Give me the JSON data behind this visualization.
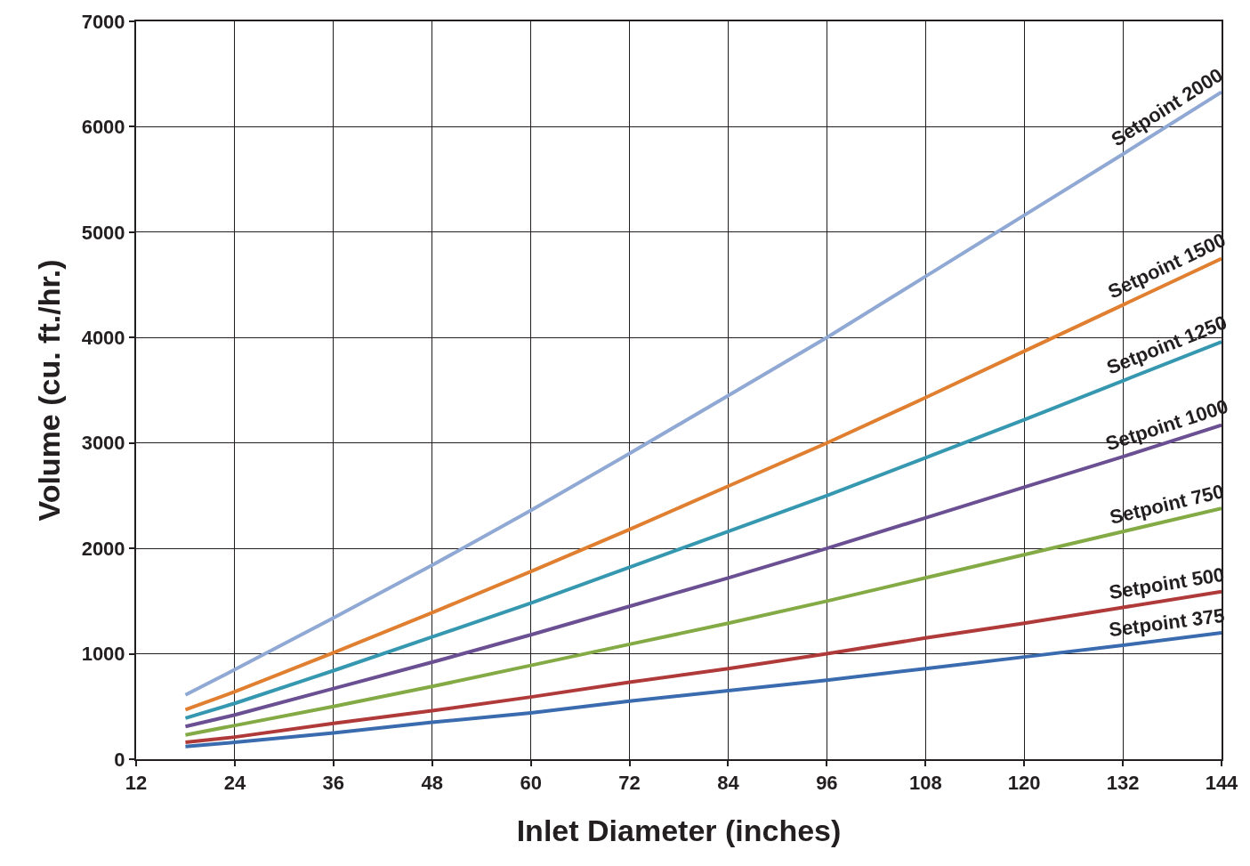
{
  "chart_data": {
    "type": "line",
    "xlabel": "Inlet Diameter (inches)",
    "ylabel": "Volume (cu. ft./hr.)",
    "x": [
      18,
      24,
      36,
      48,
      60,
      72,
      84,
      96,
      108,
      120,
      132,
      144
    ],
    "series": [
      {
        "name": "Setpoint 2000",
        "color": "#8fa8d4",
        "values": [
          610,
          850,
          1340,
          1840,
          2360,
          2900,
          3450,
          4000,
          4580,
          5160,
          5740,
          6330
        ]
      },
      {
        "name": "Setpoint 1500",
        "color": "#e07f30",
        "values": [
          470,
          640,
          1010,
          1390,
          1780,
          2180,
          2590,
          3000,
          3430,
          3870,
          4310,
          4750
        ]
      },
      {
        "name": "Setpoint 1250",
        "color": "#3598b0",
        "values": [
          390,
          530,
          840,
          1160,
          1480,
          1820,
          2160,
          2500,
          2860,
          3220,
          3590,
          3960
        ]
      },
      {
        "name": "Setpoint 1000",
        "color": "#6b4f93",
        "values": [
          310,
          420,
          670,
          920,
          1180,
          1450,
          1720,
          2000,
          2290,
          2580,
          2870,
          3170
        ]
      },
      {
        "name": "Setpoint 750",
        "color": "#83aa44",
        "values": [
          230,
          320,
          500,
          690,
          890,
          1090,
          1290,
          1500,
          1720,
          1940,
          2160,
          2380
        ]
      },
      {
        "name": "Setpoint 500",
        "color": "#b03a3a",
        "values": [
          160,
          210,
          340,
          460,
          590,
          730,
          860,
          1000,
          1150,
          1290,
          1440,
          1590
        ]
      },
      {
        "name": "Setpoint 375",
        "color": "#3a6baf",
        "values": [
          120,
          160,
          250,
          350,
          440,
          550,
          650,
          750,
          860,
          970,
          1080,
          1200
        ]
      }
    ],
    "xlim": [
      12,
      144
    ],
    "xticks": [
      12,
      24,
      36,
      48,
      60,
      72,
      84,
      96,
      108,
      120,
      132,
      144
    ],
    "ylim": [
      0,
      7000
    ],
    "yticks": [
      0,
      1000,
      2000,
      3000,
      4000,
      5000,
      6000,
      7000
    ],
    "grid": true,
    "legend": false,
    "marker": "none",
    "line_style": "solid"
  }
}
